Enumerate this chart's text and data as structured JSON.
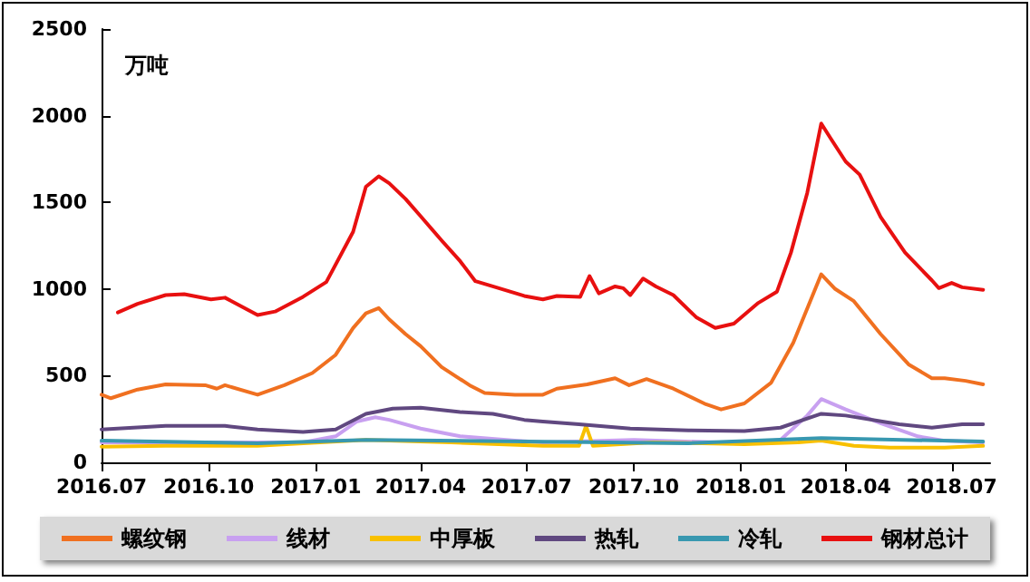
{
  "chart_data": {
    "type": "line",
    "ylabel": "万吨",
    "xlim": [
      "2016-07-01",
      "2018-08-03"
    ],
    "ylim": [
      0,
      2500
    ],
    "yticks": [
      0,
      500,
      1000,
      1500,
      2000,
      2500
    ],
    "xticks": [
      {
        "value": "2016-07-01",
        "label": "2016.07"
      },
      {
        "value": "2016-10-01",
        "label": "2016.10"
      },
      {
        "value": "2017-01-01",
        "label": "2017.01"
      },
      {
        "value": "2017-04-01",
        "label": "2017.04"
      },
      {
        "value": "2017-07-01",
        "label": "2017.07"
      },
      {
        "value": "2017-10-01",
        "label": "2017.10"
      },
      {
        "value": "2018-01-01",
        "label": "2018.01"
      },
      {
        "value": "2018-04-01",
        "label": "2018.04"
      },
      {
        "value": "2018-07-01",
        "label": "2018.07"
      }
    ],
    "grid": false,
    "legend": "bottom",
    "marker": "none",
    "line_style": "solid",
    "series": [
      {
        "name": "螺纹钢",
        "color": "#f07020",
        "x": [
          "2016-07-01",
          "2016-07-09",
          "2016-08-01",
          "2016-08-25",
          "2016-09-28",
          "2016-10-08",
          "2016-10-15",
          "2016-11-12",
          "2016-12-05",
          "2016-12-29",
          "2017-01-18",
          "2017-02-02",
          "2017-02-13",
          "2017-02-24",
          "2017-03-05",
          "2017-03-19",
          "2017-04-01",
          "2017-04-19",
          "2017-05-13",
          "2017-05-26",
          "2017-06-21",
          "2017-07-15",
          "2017-07-27",
          "2017-08-22",
          "2017-09-15",
          "2017-09-27",
          "2017-10-12",
          "2017-11-04",
          "2017-12-02",
          "2017-12-15",
          "2018-01-04",
          "2018-01-27",
          "2018-02-15",
          "2018-03-11",
          "2018-03-23",
          "2018-04-08",
          "2018-05-01",
          "2018-05-25",
          "2018-06-14",
          "2018-06-25",
          "2018-07-13",
          "2018-07-28"
        ],
        "values": [
          390,
          370,
          420,
          450,
          445,
          425,
          445,
          390,
          445,
          515,
          620,
          775,
          860,
          890,
          825,
          740,
          670,
          550,
          445,
          400,
          390,
          390,
          425,
          450,
          485,
          445,
          480,
          425,
          335,
          305,
          340,
          460,
          690,
          1085,
          1000,
          930,
          740,
          565,
          485,
          485,
          470,
          450
        ]
      },
      {
        "name": "线材",
        "color": "#c8a0f0",
        "x": [
          "2016-07-01",
          "2016-12-21",
          "2017-01-18",
          "2017-02-05",
          "2017-02-21",
          "2017-03-05",
          "2017-04-01",
          "2017-05-05",
          "2017-06-21",
          "2017-07-15",
          "2017-10-01",
          "2018-01-04",
          "2018-02-04",
          "2018-02-27",
          "2018-03-11",
          "2018-04-01",
          "2018-05-01",
          "2018-06-02",
          "2018-06-25",
          "2018-07-28"
        ],
        "values": [
          115,
          115,
          150,
          235,
          260,
          245,
          195,
          150,
          125,
          115,
          130,
          110,
          130,
          270,
          365,
          305,
          225,
          150,
          125,
          115
        ]
      },
      {
        "name": "中厚板",
        "color": "#f8c000",
        "x": [
          "2016-07-01",
          "2016-08-25",
          "2016-11-12",
          "2017-02-13",
          "2017-04-27",
          "2017-07-15",
          "2017-08-15",
          "2017-08-21",
          "2017-08-27",
          "2017-10-17",
          "2018-01-04",
          "2018-02-19",
          "2018-03-11",
          "2018-04-08",
          "2018-05-09",
          "2018-06-25",
          "2018-07-28"
        ],
        "values": [
          90,
          95,
          95,
          130,
          115,
          95,
          95,
          210,
          95,
          115,
          105,
          115,
          125,
          95,
          85,
          85,
          95
        ]
      },
      {
        "name": "热轧",
        "color": "#604880",
        "x": [
          "2016-07-01",
          "2016-08-25",
          "2016-10-15",
          "2016-11-12",
          "2016-12-21",
          "2017-01-18",
          "2017-02-13",
          "2017-03-08",
          "2017-04-01",
          "2017-05-05",
          "2017-06-02",
          "2017-06-29",
          "2017-07-15",
          "2017-08-15",
          "2017-09-28",
          "2017-11-17",
          "2018-01-04",
          "2018-02-04",
          "2018-03-11",
          "2018-04-01",
          "2018-05-17",
          "2018-06-14",
          "2018-07-10",
          "2018-07-28"
        ],
        "values": [
          190,
          210,
          210,
          190,
          175,
          190,
          280,
          310,
          315,
          290,
          280,
          245,
          235,
          220,
          195,
          185,
          180,
          200,
          280,
          270,
          220,
          200,
          220,
          220
        ]
      },
      {
        "name": "冷轧",
        "color": "#3898b0",
        "x": [
          "2016-07-01",
          "2016-11-12",
          "2017-02-13",
          "2017-06-29",
          "2017-11-17",
          "2018-03-11",
          "2018-07-28"
        ],
        "values": [
          125,
          110,
          130,
          120,
          110,
          140,
          120
        ]
      },
      {
        "name": "钢材总计",
        "color": "#e81010",
        "x": [
          "2016-07-15",
          "2016-08-01",
          "2016-08-25",
          "2016-09-10",
          "2016-10-03",
          "2016-10-15",
          "2016-11-12",
          "2016-11-27",
          "2016-12-21",
          "2017-01-10",
          "2017-02-02",
          "2017-02-13",
          "2017-02-24",
          "2017-03-05",
          "2017-03-19",
          "2017-04-01",
          "2017-04-19",
          "2017-05-05",
          "2017-05-18",
          "2017-06-02",
          "2017-06-29",
          "2017-07-15",
          "2017-07-27",
          "2017-08-16",
          "2017-08-24",
          "2017-09-01",
          "2017-09-15",
          "2017-09-22",
          "2017-09-28",
          "2017-10-09",
          "2017-10-20",
          "2017-11-04",
          "2017-11-24",
          "2017-12-10",
          "2017-12-26",
          "2018-01-16",
          "2018-02-01",
          "2018-02-13",
          "2018-02-27",
          "2018-03-11",
          "2018-03-19",
          "2018-04-01",
          "2018-04-13",
          "2018-05-01",
          "2018-05-22",
          "2018-06-14",
          "2018-06-20",
          "2018-07-01",
          "2018-07-10",
          "2018-07-28"
        ],
        "values": [
          865,
          915,
          965,
          970,
          940,
          950,
          850,
          870,
          955,
          1040,
          1330,
          1590,
          1650,
          1610,
          1520,
          1420,
          1280,
          1160,
          1045,
          1015,
          960,
          940,
          960,
          955,
          1075,
          975,
          1015,
          1005,
          965,
          1060,
          1015,
          965,
          835,
          775,
          800,
          920,
          985,
          1210,
          1555,
          1955,
          1870,
          1735,
          1660,
          1415,
          1210,
          1050,
          1005,
          1035,
          1010,
          995
        ]
      }
    ]
  }
}
